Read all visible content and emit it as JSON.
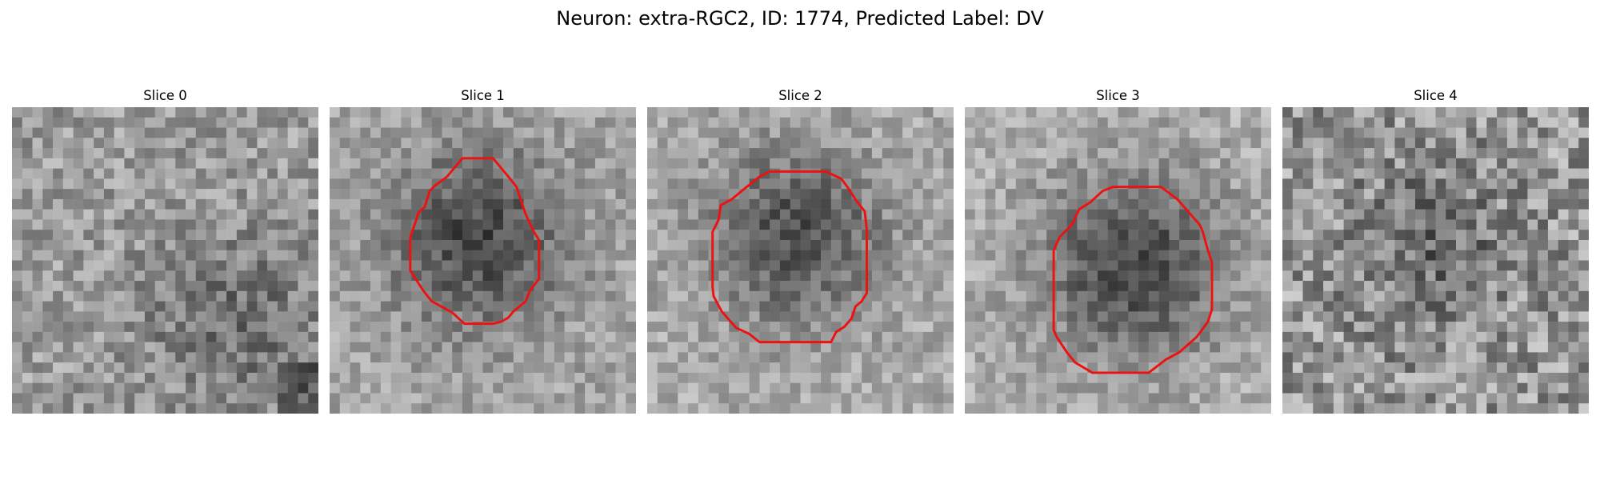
{
  "figure": {
    "title": "Neuron: extra-RGC2, ID: 1774, Predicted Label: DV"
  },
  "panels": [
    {
      "title": "Slice 0"
    },
    {
      "title": "Slice 1"
    },
    {
      "title": "Slice 2"
    },
    {
      "title": "Slice 3"
    },
    {
      "title": "Slice 4"
    }
  ],
  "colors": {
    "contour": "#ee1111"
  }
}
